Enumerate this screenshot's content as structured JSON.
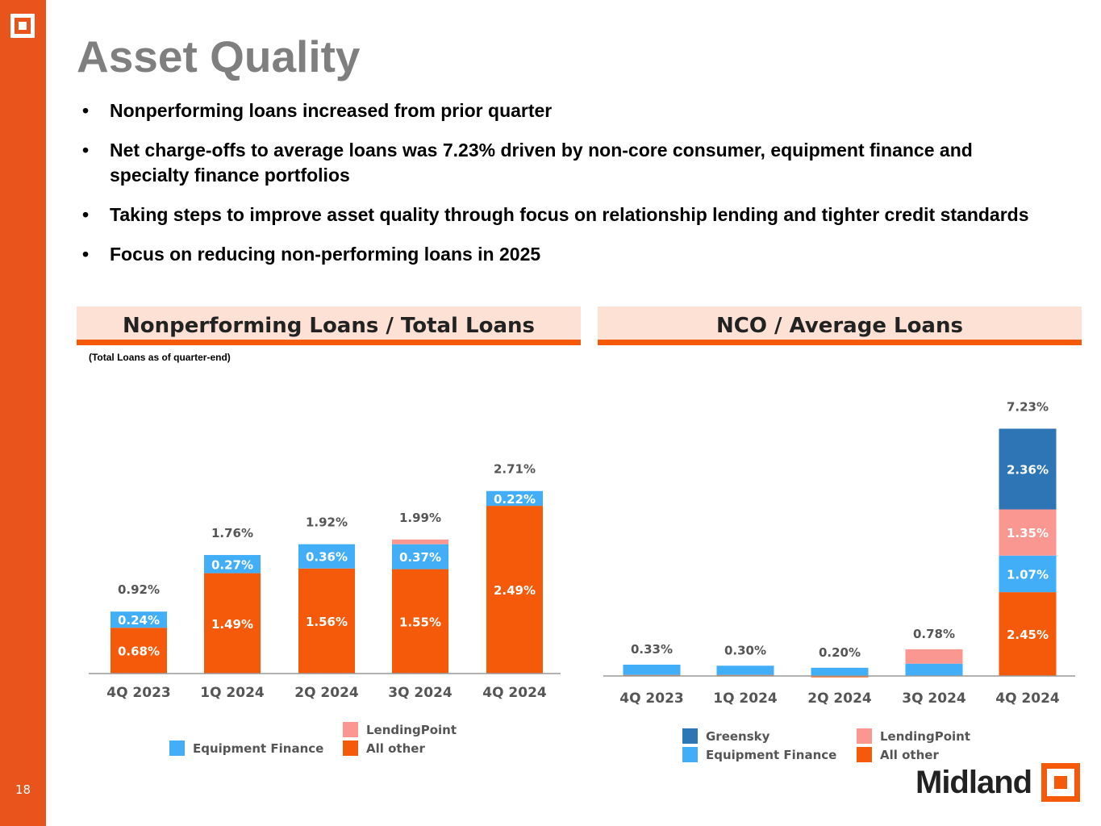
{
  "slide": {
    "title": "Asset Quality",
    "page_number": "18",
    "brand": "Midland",
    "bullets": [
      "Nonperforming loans increased from prior quarter",
      "Net charge-offs to average loans was 7.23% driven by non-core consumer, equipment finance and specialty finance portfolios",
      "Taking steps to improve asset quality through focus on relationship lending and tighter credit standards",
      "Focus on reducing non-performing loans in 2025"
    ]
  },
  "colors": {
    "all_other": "#f45a0a",
    "equipment_finance": "#42aef8",
    "lendingpoint": "#fa9791",
    "greensky": "#2e75b6",
    "accent": "#e8541c"
  },
  "chart_data": [
    {
      "type": "bar",
      "stacked": true,
      "title": "Nonperforming Loans / Total Loans",
      "note": "(Total Loans as of quarter-end)",
      "categories": [
        "4Q 2023",
        "1Q 2024",
        "2Q 2024",
        "3Q 2024",
        "4Q 2024"
      ],
      "totals": [
        "0.92%",
        "1.76%",
        "1.92%",
        "1.99%",
        "2.71%"
      ],
      "series": [
        {
          "name": "All other",
          "color": "#f45a0a",
          "values": [
            0.68,
            1.49,
            1.56,
            1.55,
            2.49
          ],
          "labels": [
            "0.68%",
            "1.49%",
            "1.56%",
            "1.55%",
            "2.49%"
          ]
        },
        {
          "name": "Equipment Finance",
          "color": "#42aef8",
          "values": [
            0.24,
            0.27,
            0.36,
            0.37,
            0.22
          ],
          "labels": [
            "0.24%",
            "0.27%",
            "0.36%",
            "0.37%",
            "0.22%"
          ]
        },
        {
          "name": "LendingPoint",
          "color": "#fa9791",
          "values": [
            0,
            0,
            0,
            0.07,
            0
          ],
          "labels": [
            "",
            "",
            "",
            "",
            ""
          ]
        }
      ],
      "legend": [
        "Equipment Finance",
        "LendingPoint",
        "All other"
      ],
      "legend_position": "bottom",
      "grid": false
    },
    {
      "type": "bar",
      "stacked": true,
      "title": "NCO / Average Loans",
      "categories": [
        "4Q 2023",
        "1Q 2024",
        "2Q 2024",
        "3Q 2024",
        "4Q 2024"
      ],
      "totals": [
        "0.33%",
        "0.30%",
        "0.20%",
        "0.78%",
        "7.23%"
      ],
      "series": [
        {
          "name": "All other",
          "color": "#f45a0a",
          "values": [
            0.03,
            0.03,
            -0.04,
            0.0,
            2.45
          ],
          "labels": [
            "",
            "",
            "",
            "",
            "2.45%"
          ]
        },
        {
          "name": "Equipment Finance",
          "color": "#42aef8",
          "values": [
            0.3,
            0.27,
            0.24,
            0.36,
            1.07
          ],
          "labels": [
            "",
            "",
            "",
            "",
            "1.07%"
          ]
        },
        {
          "name": "LendingPoint",
          "color": "#fa9791",
          "values": [
            0,
            0,
            0,
            0.42,
            1.35
          ],
          "labels": [
            "",
            "",
            "",
            "",
            "1.35%"
          ]
        },
        {
          "name": "Greensky",
          "color": "#2e75b6",
          "values": [
            0,
            0,
            0,
            0,
            2.36
          ],
          "labels": [
            "",
            "",
            "",
            "",
            "2.36%"
          ]
        }
      ],
      "legend": [
        "Greensky",
        "LendingPoint",
        "Equipment Finance",
        "All other"
      ],
      "legend_position": "bottom",
      "grid": false
    }
  ]
}
